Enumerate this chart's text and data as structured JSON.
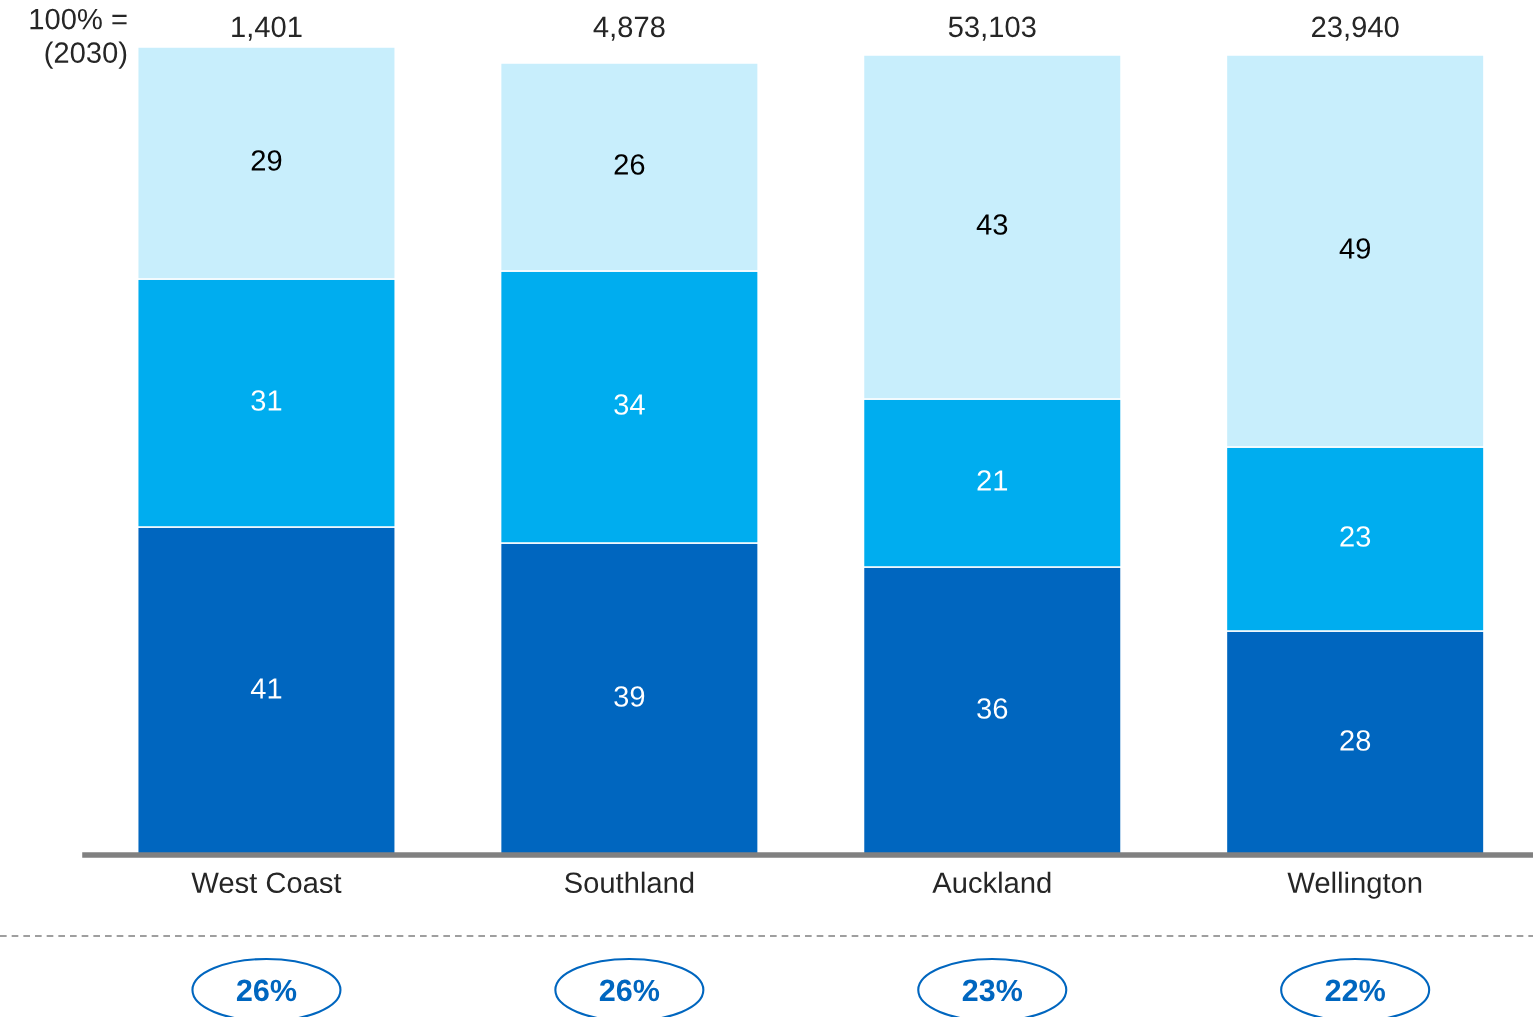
{
  "chart_data": {
    "type": "bar",
    "stacked": true,
    "data_labels": true,
    "categories": [
      "West Coast",
      "Southland",
      "Auckland",
      "Wellington"
    ],
    "series": [
      {
        "color": "#0066bf",
        "values": [
          41,
          39,
          36,
          28
        ]
      },
      {
        "color": "#00adef",
        "values": [
          31,
          34,
          21,
          23
        ]
      },
      {
        "color": "#c8eefc",
        "values": [
          29,
          26,
          43,
          49
        ]
      }
    ],
    "annotations": [
      "100% =\n(2030)",
      "1,401",
      "4,878",
      "53,103",
      "23,940",
      "26%",
      "26%",
      "23%",
      "22%"
    ]
  }
}
